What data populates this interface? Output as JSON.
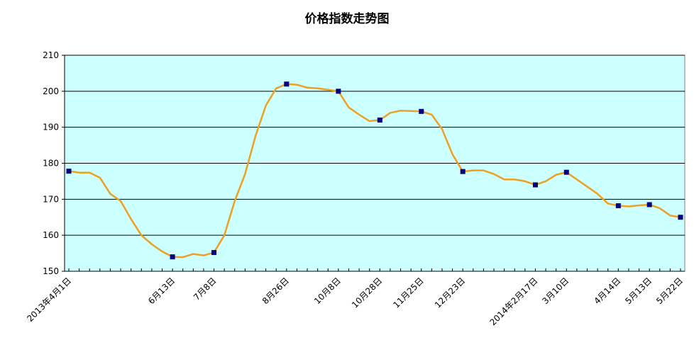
{
  "chart_data": {
    "type": "line",
    "title": "价格指数走势图",
    "categories": [
      "2013年4月1日",
      null,
      null,
      null,
      null,
      null,
      null,
      null,
      null,
      null,
      "6月13日",
      null,
      null,
      null,
      "7月8日",
      null,
      null,
      null,
      null,
      null,
      null,
      "8月26日",
      null,
      null,
      null,
      null,
      "10月8日",
      null,
      null,
      null,
      "10月28日",
      null,
      null,
      null,
      "11月25日",
      null,
      null,
      null,
      "12月23日",
      null,
      null,
      null,
      null,
      null,
      null,
      "2014年2月17日",
      null,
      null,
      "3月10日",
      null,
      null,
      null,
      null,
      "4月14日",
      null,
      null,
      "5月13日",
      null,
      null,
      "5月22日"
    ],
    "series": [
      {
        "name": null,
        "color": "#f0a020",
        "marker_color": "#000080",
        "values": [
          177.8,
          177.4,
          177.4,
          176,
          171.5,
          169.5,
          164.5,
          160,
          157.5,
          155.5,
          154,
          153.9,
          154.8,
          154.4,
          155.2,
          160,
          169.5,
          177,
          187.5,
          196,
          200.8,
          202,
          201.8,
          201,
          200.8,
          200.4,
          200,
          195.5,
          193.5,
          191.7,
          192,
          194,
          194.6,
          194.5,
          194.4,
          193.5,
          189.5,
          182.5,
          177.7,
          178,
          178,
          177,
          175.5,
          175.5,
          175,
          174,
          175,
          176.8,
          177.5,
          175.5,
          173.5,
          171.5,
          168.8,
          168.2,
          168,
          168.3,
          168.5,
          167.5,
          165.5,
          165
        ]
      }
    ],
    "ylim": [
      150,
      210
    ],
    "yticks": [
      150,
      160,
      170,
      180,
      190,
      200,
      210
    ],
    "grid": true,
    "plot_background": "#ccffff"
  }
}
